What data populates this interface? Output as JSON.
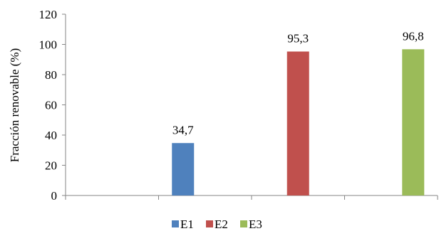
{
  "chart_data": {
    "type": "bar",
    "title": "",
    "xlabel": "",
    "ylabel": "Fracción renovable (%)",
    "ylim": [
      0,
      120
    ],
    "yticks": [
      0,
      20,
      40,
      60,
      80,
      100,
      120
    ],
    "grid": false,
    "legend_position": "bottom",
    "series": [
      {
        "name": "E1",
        "value": 34.7,
        "label": "34,7",
        "color": "#4f81bd"
      },
      {
        "name": "E2",
        "value": 95.3,
        "label": "95,3",
        "color": "#c0504d"
      },
      {
        "name": "E3",
        "value": 96.8,
        "label": "96,8",
        "color": "#9bbb59"
      }
    ]
  }
}
